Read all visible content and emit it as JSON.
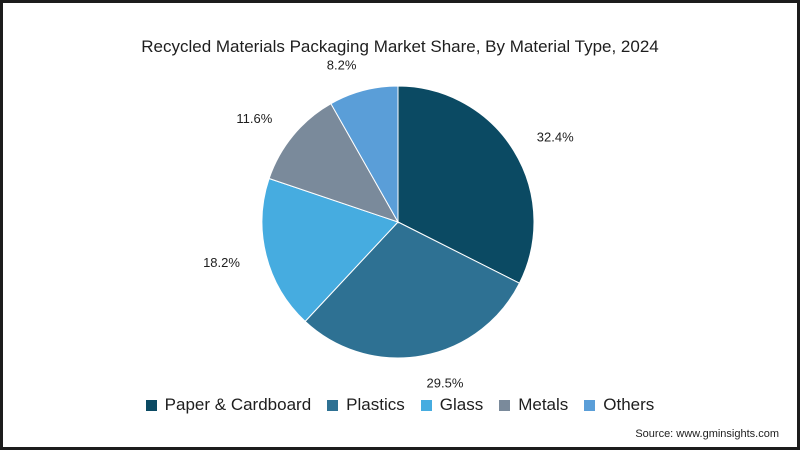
{
  "chart_data": {
    "type": "pie",
    "title": "Recycled Materials Packaging Market Share, By Material Type, 2024",
    "categories": [
      "Paper & Cardboard",
      "Plastics",
      "Glass",
      "Metals",
      "Others"
    ],
    "values": [
      32.4,
      29.5,
      18.2,
      11.6,
      8.2
    ],
    "value_labels": [
      "32.4%",
      "29.5%",
      "18.2%",
      "11.6%",
      "8.2%"
    ],
    "colors": [
      "#0b4a63",
      "#2e7193",
      "#46ace0",
      "#7a8a9b",
      "#5a9ed8"
    ],
    "legend_position": "bottom",
    "start": "12 o'clock, clockwise"
  },
  "source": "Source: www.gminsights.com"
}
